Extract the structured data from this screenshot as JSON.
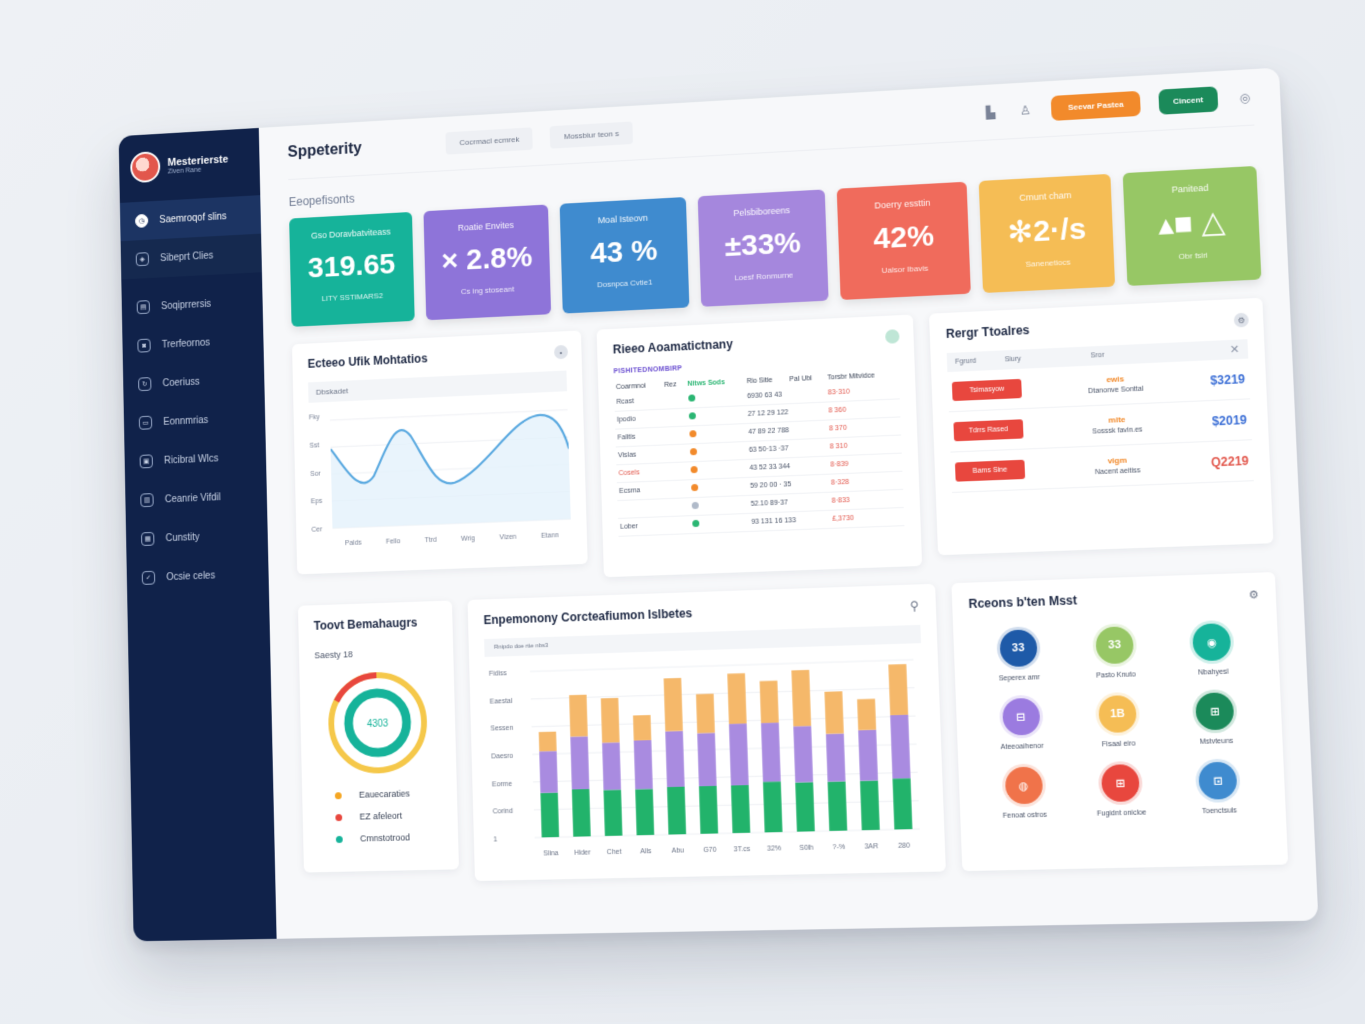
{
  "sidebar": {
    "brand_name": "Mesterierste",
    "brand_sub": "Ziven Rane",
    "items": [
      {
        "label": "Saemroqof slins",
        "icon": "clock-icon"
      },
      {
        "label": "Sibeprt Clies",
        "icon": "shield-icon"
      },
      {
        "label": "Soqiprrersis",
        "icon": "document-icon"
      },
      {
        "label": "Trerfeornos",
        "icon": "camera-icon"
      },
      {
        "label": "Coeriuss",
        "icon": "refresh-icon"
      },
      {
        "label": "Eonnmrias",
        "icon": "folder-icon"
      },
      {
        "label": "Ricibral Wlcs",
        "icon": "wallet-icon"
      },
      {
        "label": "Ceanrie Vifdil",
        "icon": "clipboard-icon"
      },
      {
        "label": "Cunstity",
        "icon": "calendar-icon"
      },
      {
        "label": "Ocsie celes",
        "icon": "check-icon"
      }
    ]
  },
  "header": {
    "title": "Sppeterity",
    "pill1": "Cocrmacl ecmrek",
    "pill2": "Mossbiur teon s",
    "orange_button": "Seevar Pastea",
    "green_button": "Cincent"
  },
  "section_label": "Eeopefisonts",
  "colors": {
    "teal": "#16b39a",
    "purple1": "#8e74d9",
    "blue": "#3f8bcf",
    "purple2": "#a587dd",
    "coral": "#f06b5c",
    "amber": "#f5bd55",
    "green": "#97c765",
    "sidebar": "#10224a"
  },
  "kpis": [
    {
      "label": "Gso Doravbatviteass",
      "value": "319.65",
      "foot": "LITY SSTIMARS2",
      "color": "#16b39a"
    },
    {
      "label": "Roatie Envites",
      "value": "× 2.8%",
      "foot": "Cs ing stoseant",
      "color": "#8e74d9"
    },
    {
      "label": "Moal Isteovn",
      "value": "43 %",
      "foot": "Dosnpca Cvtie1",
      "color": "#3f8bcf"
    },
    {
      "label": "Pelsbiboreens",
      "value": "±33%",
      "foot": "Loesf Ronmurne",
      "color": "#a587dd"
    },
    {
      "label": "Doerry essttin",
      "value": "42%",
      "foot": "Ualsor Ibavis",
      "color": "#f06b5c"
    },
    {
      "label": "Cmunt cham",
      "value": "✻2·/s",
      "foot": "Sanenetiocs",
      "color": "#f5bd55"
    },
    {
      "label": "Panitead",
      "value": "▴■ △",
      "foot": "Obr fsiri",
      "color": "#97c765"
    }
  ],
  "line_card": {
    "title": "Ecteeo Ufik Mohtatios",
    "subheader": "Dbskadet",
    "ylabels": [
      "Fky",
      "Sst",
      "Sor",
      "Eps",
      "Cer"
    ],
    "xlabels": [
      "Palds",
      "Fello",
      "Ttrd",
      "Wrig",
      "Vlzen",
      "Etann"
    ]
  },
  "table_card": {
    "title": "Rieeo Aoamatictnany",
    "subtitle": "PISHITEDNOMBIRP",
    "headers": [
      "Coarmnoi",
      "Rez",
      "Nitws Sods",
      "Rio Sitie",
      "Pal Ubl",
      "Torsbr Mitvidce"
    ],
    "rows": [
      {
        "name": "Rcast",
        "dot": "#2bb673",
        "mid": "6930 63 43",
        "amt": "83·310",
        "red": false
      },
      {
        "name": "Ipodio",
        "dot": "#2bb673",
        "mid": "27 12 29 122",
        "amt": "8 360",
        "red": false
      },
      {
        "name": "Falitis",
        "dot": "#f28a2b",
        "mid": "47 89 22 788",
        "amt": "8 370",
        "red": false
      },
      {
        "name": "Vislas",
        "dot": "#f28a2b",
        "mid": "63 50·13 ·37",
        "amt": "8 310",
        "red": false
      },
      {
        "name": "Cosels",
        "dot": "#f28a2b",
        "mid": "43 52 33 344",
        "amt": "8·839",
        "red": true
      },
      {
        "name": "Ecsma",
        "dot": "#f28a2b",
        "mid": "59 20 00 · 35",
        "amt": "8·328",
        "red": false
      },
      {
        "name": "",
        "dot": "#b0bac9",
        "mid": "52.10 89·37",
        "amt": "8·833",
        "red": false
      },
      {
        "name": "Lober",
        "dot": "#2bb673",
        "mid": "93 131 16 133",
        "amt": "£,3730",
        "red": false
      }
    ]
  },
  "report_card": {
    "title": "Rergr Ttoalres",
    "headers": [
      "Fgrurd",
      "Siury",
      "Sror"
    ],
    "rows": [
      {
        "tag": "Tsimasyow",
        "m1": "ewis",
        "m2": "Dtanonve Sonttal",
        "amt": "$3219",
        "amt_color": "#3c6fd6",
        "m1_color": "#f28a2b"
      },
      {
        "tag": "Tdrrs Rased",
        "m1": "mite",
        "m2": "Sosssk favin.es",
        "amt": "$2019",
        "amt_color": "#3c6fd6",
        "m1_color": "#f28a2b"
      },
      {
        "tag": "Bams Sine",
        "m1": "vigm",
        "m2": "Nacent aeitiss",
        "amt": "Q2219",
        "amt_color": "#e2574c",
        "m1_color": "#f28a2b"
      }
    ]
  },
  "donut_card": {
    "title": "Toovt Bemahaugrs",
    "subtitle": "Saesty 18",
    "center": "4303",
    "legend": [
      {
        "label": "Eauecaraties",
        "color": "#f5a623"
      },
      {
        "label": "EZ afeleort",
        "color": "#e8473e"
      },
      {
        "label": "Cmnstotrood",
        "color": "#16b39a"
      }
    ]
  },
  "bar_card": {
    "title": "Enpemonony Corcteafiumon Islbetes",
    "subheader": "Rnipdo doe rtie nbs3",
    "ylabels": [
      "Fidiss",
      "Eaestal",
      "Sessen",
      "Daesro",
      "Eorme",
      "Corind",
      "1"
    ],
    "xlabels": [
      "Slina",
      "Hider",
      "Chet",
      "Alls",
      "Abu",
      "G70",
      "3T.cs",
      "32%",
      "S0lh",
      "?-%",
      "3AR",
      "280"
    ]
  },
  "chart_data": {
    "type": "bar",
    "categories": [
      "Slina",
      "Hider",
      "Chet",
      "Alls",
      "Abu",
      "G70",
      "3T.cs",
      "32%",
      "S0lh",
      "?-%",
      "3AR",
      "280"
    ],
    "series": [
      {
        "values": [
          32,
          34,
          33,
          33,
          34,
          34,
          34,
          36,
          35,
          35,
          35,
          36
        ]
      },
      {
        "values": [
          30,
          38,
          34,
          35,
          40,
          38,
          44,
          42,
          40,
          34,
          36,
          45
        ]
      },
      {
        "values": [
          14,
          30,
          32,
          18,
          38,
          28,
          36,
          30,
          40,
          30,
          22,
          36
        ]
      }
    ],
    "colors": [
      "#22b36b",
      "#a98be0",
      "#f5b86a"
    ],
    "ylim": [
      0,
      120
    ]
  },
  "icon_card": {
    "title": "Rceons b'ten Msst",
    "items": [
      {
        "label": "Seperex amr",
        "text": "33",
        "color": "#1e5aa8"
      },
      {
        "label": "Pasto Knuto",
        "text": "33",
        "color": "#97c765"
      },
      {
        "label": "Nbahyesl",
        "text": "◉",
        "color": "#16b39a"
      },
      {
        "label": "Ateeoaihenor",
        "text": "⊟",
        "color": "#9b7be0"
      },
      {
        "label": "Fisaal eiro",
        "text": "1B",
        "color": "#f5bd55"
      },
      {
        "label": "Mstvteuns",
        "text": "⊞",
        "color": "#1b8a5a"
      },
      {
        "label": "Fenoat ostros",
        "text": "◍",
        "color": "#f0734a"
      },
      {
        "label": "Fugidnt onicloe",
        "text": "⊞",
        "color": "#e8473e"
      },
      {
        "label": "Toenctsuls",
        "text": "⊡",
        "color": "#3f8bcf"
      }
    ]
  }
}
